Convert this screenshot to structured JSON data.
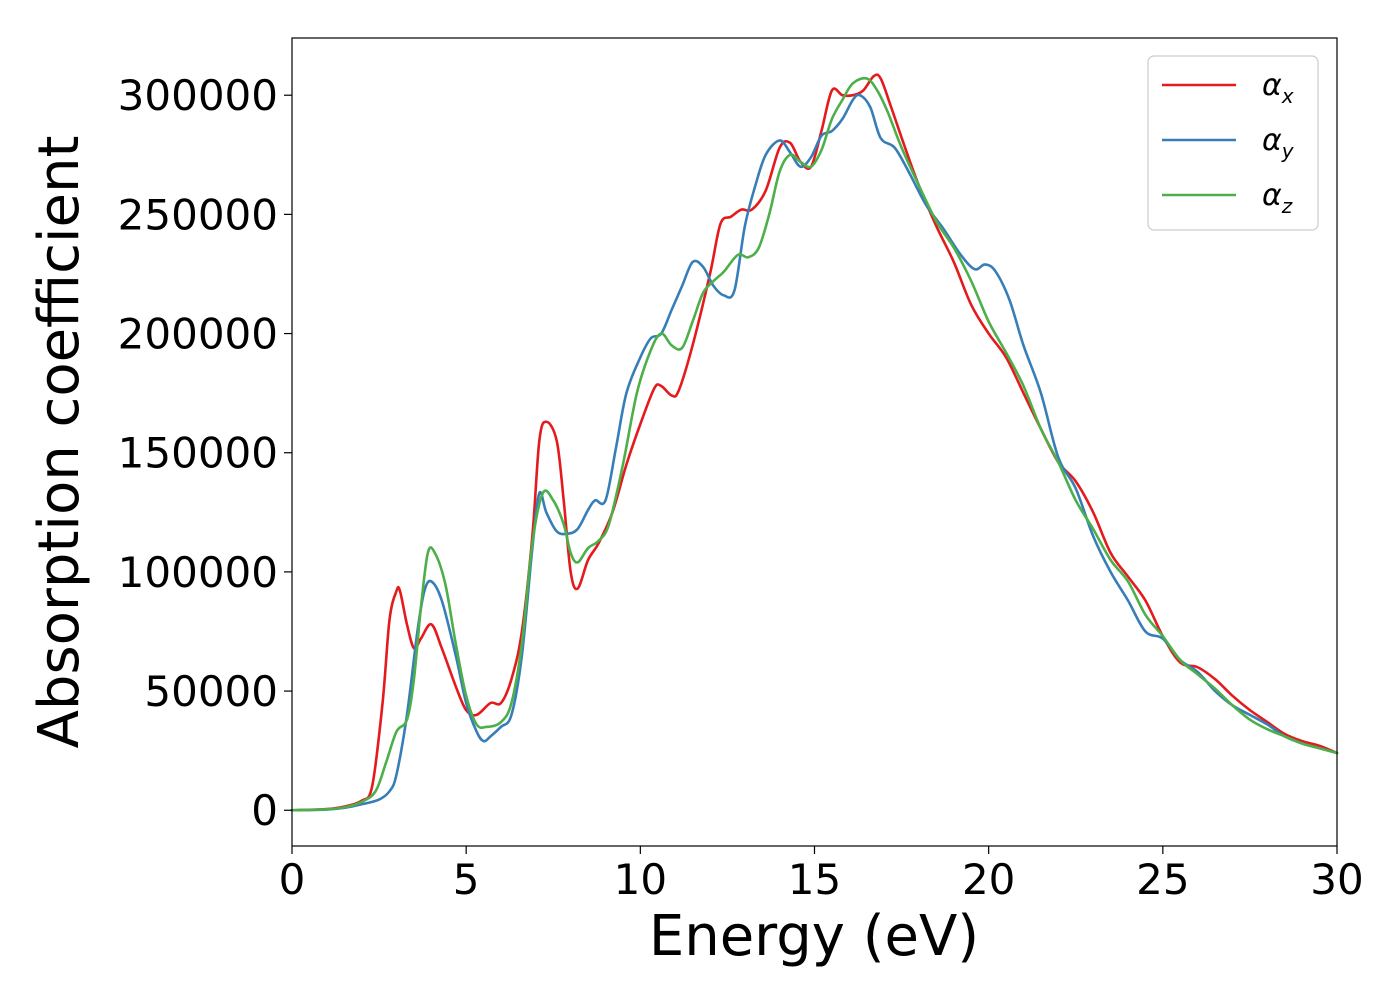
{
  "chart_data": {
    "type": "line",
    "xlabel": "Energy (eV)",
    "ylabel": "Absorption coefficient",
    "xlim": [
      0,
      30
    ],
    "ylim": [
      -15000,
      324000
    ],
    "xticks": [
      0,
      5,
      10,
      15,
      20,
      25,
      30
    ],
    "yticks": [
      0,
      50000,
      100000,
      150000,
      200000,
      250000,
      300000
    ],
    "grid": false,
    "legend_position": "top-right",
    "series": [
      {
        "name": "α",
        "subscript": "x",
        "color": "#e41a1c",
        "x": [
          0,
          1,
          1.5,
          2.0,
          2.3,
          2.6,
          2.8,
          3.0,
          3.1,
          3.3,
          3.5,
          3.7,
          4.0,
          4.3,
          4.7,
          5.0,
          5.3,
          5.7,
          6.0,
          6.3,
          6.6,
          6.9,
          7.1,
          7.3,
          7.6,
          7.8,
          8.0,
          8.2,
          8.5,
          8.8,
          9.2,
          9.6,
          10.0,
          10.4,
          10.6,
          10.9,
          11.1,
          11.5,
          12.0,
          12.3,
          12.6,
          12.9,
          13.2,
          13.6,
          14.0,
          14.3,
          14.6,
          14.9,
          15.2,
          15.5,
          15.8,
          16.1,
          16.4,
          16.7,
          16.9,
          17.2,
          17.6,
          18.0,
          18.5,
          19.0,
          19.5,
          20.0,
          20.5,
          21.0,
          21.5,
          22.0,
          22.5,
          23.0,
          23.5,
          24.0,
          24.5,
          25.0,
          25.5,
          26.0,
          26.5,
          27.0,
          27.5,
          28.0,
          28.5,
          29.0,
          29.5,
          30.0
        ],
        "y": [
          0,
          500,
          1500,
          4000,
          10000,
          45000,
          80000,
          92000,
          92000,
          78000,
          68000,
          72000,
          78000,
          68000,
          52000,
          42000,
          40000,
          45000,
          45000,
          55000,
          75000,
          115000,
          155000,
          163000,
          155000,
          130000,
          100000,
          93000,
          105000,
          112000,
          125000,
          145000,
          162000,
          177000,
          178000,
          174000,
          176000,
          195000,
          225000,
          246000,
          249000,
          252000,
          252000,
          260000,
          278000,
          280000,
          272000,
          270000,
          285000,
          302000,
          300000,
          300000,
          302000,
          308000,
          307000,
          295000,
          278000,
          262000,
          245000,
          230000,
          212000,
          200000,
          190000,
          175000,
          160000,
          146000,
          138000,
          125000,
          108000,
          98000,
          88000,
          73000,
          62000,
          60000,
          55000,
          48000,
          42000,
          37000,
          32000,
          29000,
          27000,
          24000
        ]
      },
      {
        "name": "α",
        "subscript": "y",
        "color": "#377eb8",
        "x": [
          0,
          1,
          1.5,
          2.0,
          2.5,
          2.8,
          3.0,
          3.3,
          3.6,
          3.8,
          4.0,
          4.3,
          4.7,
          5.0,
          5.3,
          5.5,
          5.7,
          6.0,
          6.3,
          6.6,
          6.9,
          7.1,
          7.3,
          7.6,
          7.9,
          8.2,
          8.5,
          8.7,
          9.0,
          9.3,
          9.6,
          10.0,
          10.3,
          10.6,
          10.9,
          11.2,
          11.5,
          11.8,
          12.1,
          12.4,
          12.7,
          13.0,
          13.3,
          13.6,
          14.0,
          14.3,
          14.6,
          14.9,
          15.2,
          15.5,
          15.8,
          16.1,
          16.3,
          16.6,
          16.9,
          17.3,
          17.7,
          18.2,
          18.7,
          19.2,
          19.6,
          19.9,
          20.2,
          20.6,
          21.0,
          21.5,
          22.0,
          22.5,
          23.0,
          23.5,
          24.0,
          24.5,
          25.0,
          25.5,
          26.0,
          26.5,
          27.0,
          27.5,
          28.0,
          28.5,
          29.0,
          29.5,
          30.0
        ],
        "y": [
          0,
          300,
          1000,
          2500,
          4500,
          8000,
          15000,
          40000,
          75000,
          92000,
          96000,
          88000,
          65000,
          45000,
          33000,
          29000,
          31000,
          35000,
          40000,
          65000,
          110000,
          133000,
          125000,
          117000,
          116000,
          118000,
          126000,
          130000,
          130000,
          152000,
          175000,
          190000,
          198000,
          200000,
          210000,
          220000,
          230000,
          228000,
          220000,
          216000,
          218000,
          245000,
          262000,
          275000,
          281000,
          276000,
          270000,
          274000,
          283000,
          285000,
          290000,
          298000,
          300000,
          295000,
          282000,
          278000,
          268000,
          254000,
          244000,
          233000,
          227000,
          229000,
          226000,
          214000,
          195000,
          175000,
          148000,
          135000,
          115000,
          100000,
          88000,
          75000,
          72000,
          63000,
          58000,
          50000,
          44000,
          40000,
          36000,
          31000,
          28000,
          26000,
          24000
        ]
      },
      {
        "name": "α",
        "subscript": "z",
        "color": "#4daf4a",
        "x": [
          0,
          1,
          1.5,
          2.0,
          2.4,
          2.7,
          3.0,
          3.3,
          3.5,
          3.7,
          3.9,
          4.1,
          4.4,
          4.7,
          5.0,
          5.3,
          5.6,
          6.0,
          6.3,
          6.6,
          6.9,
          7.2,
          7.5,
          7.8,
          8.0,
          8.2,
          8.5,
          8.8,
          9.1,
          9.5,
          9.9,
          10.3,
          10.6,
          10.9,
          11.2,
          11.5,
          11.8,
          12.1,
          12.4,
          12.8,
          13.1,
          13.4,
          13.7,
          14.0,
          14.3,
          14.6,
          14.9,
          15.2,
          15.5,
          15.8,
          16.1,
          16.5,
          16.8,
          17.1,
          17.5,
          18.0,
          18.5,
          19.0,
          19.5,
          20.0,
          20.5,
          21.0,
          21.5,
          22.0,
          22.5,
          23.0,
          23.5,
          24.0,
          24.5,
          25.0,
          25.5,
          26.0,
          26.5,
          27.0,
          27.5,
          28.0,
          28.5,
          29.0,
          29.5,
          30.0
        ],
        "y": [
          0,
          400,
          1200,
          3500,
          8000,
          20000,
          33000,
          38000,
          55000,
          85000,
          108000,
          108000,
          95000,
          70000,
          48000,
          36000,
          35000,
          37000,
          45000,
          70000,
          112000,
          133000,
          130000,
          120000,
          108000,
          104000,
          110000,
          113000,
          120000,
          145000,
          175000,
          193000,
          200000,
          195000,
          194000,
          205000,
          217000,
          222000,
          226000,
          233000,
          232000,
          236000,
          250000,
          268000,
          275000,
          272000,
          270000,
          277000,
          290000,
          298000,
          305000,
          307000,
          302000,
          293000,
          278000,
          262000,
          247000,
          236000,
          222000,
          205000,
          192000,
          178000,
          160000,
          146000,
          130000,
          118000,
          105000,
          96000,
          82000,
          73000,
          63000,
          57000,
          51000,
          44000,
          38000,
          34000,
          31000,
          28000,
          26000,
          24000
        ]
      }
    ]
  }
}
